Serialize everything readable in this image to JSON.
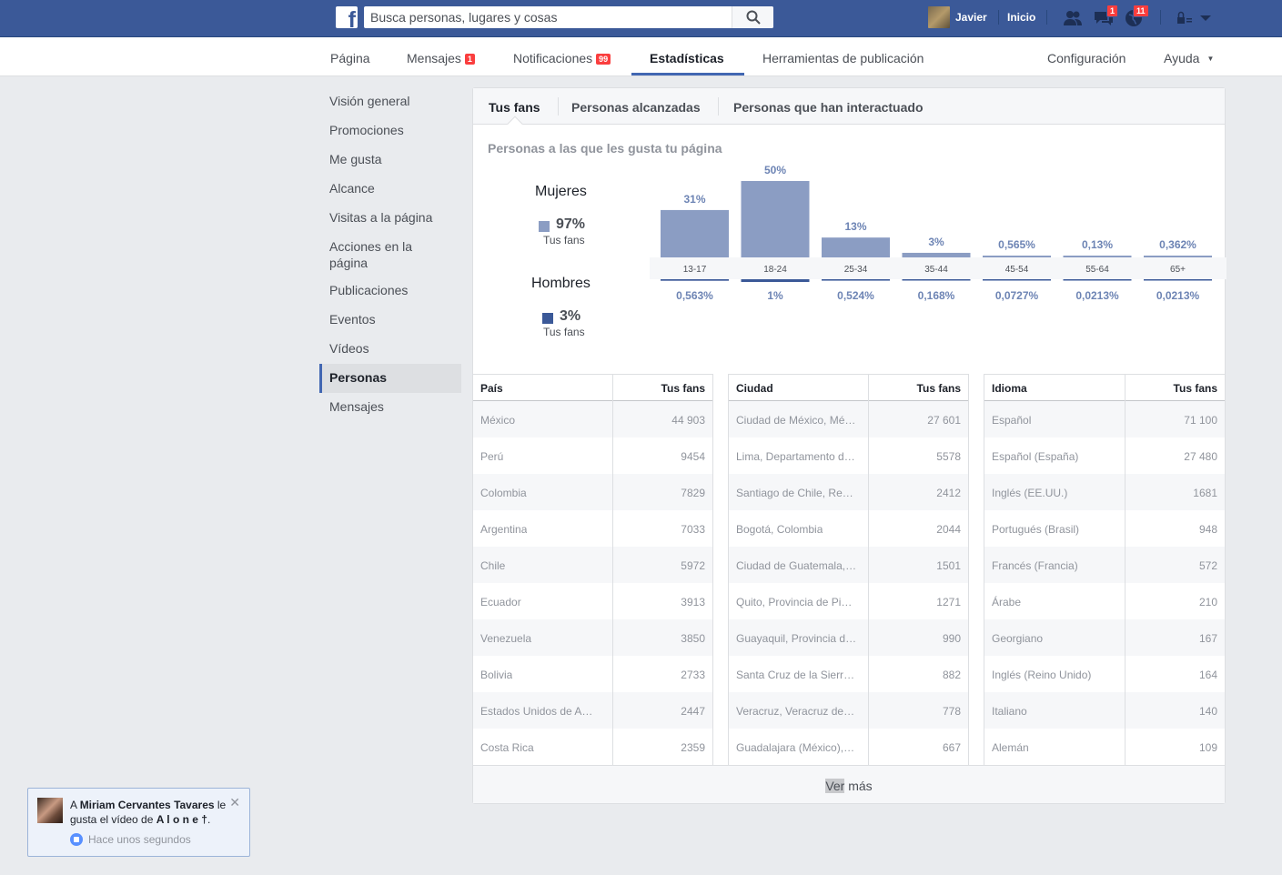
{
  "topbar": {
    "search_placeholder": "Busca personas, lugares y cosas",
    "user_name": "Javier",
    "home_label": "Inicio",
    "friend_requests_badge": "",
    "messages_badge": "1",
    "notifications_badge": "11"
  },
  "pagebar": {
    "tabs": [
      {
        "label": "Página"
      },
      {
        "label": "Mensajes",
        "badge": "1"
      },
      {
        "label": "Notificaciones",
        "badge": "99"
      },
      {
        "label": "Estadísticas"
      },
      {
        "label": "Herramientas de publicación"
      }
    ],
    "config_label": "Configuración",
    "help_label": "Ayuda"
  },
  "leftmenu": {
    "items": [
      "Visión general",
      "Promociones",
      "Me gusta",
      "Alcance",
      "Visitas a la página",
      "Acciones en la página",
      "Publicaciones",
      "Eventos",
      "Vídeos",
      "Personas",
      "Mensajes"
    ],
    "active": "Personas"
  },
  "subtabs": [
    "Tus fans",
    "Personas alcanzadas",
    "Personas que han interactuado"
  ],
  "chart_section": {
    "title": "Personas a las que les gusta tu página",
    "women": {
      "label": "Mujeres",
      "pct": "97%",
      "sub": "Tus fans"
    },
    "men": {
      "label": "Hombres",
      "pct": "3%",
      "sub": "Tus fans"
    }
  },
  "chart_data": {
    "type": "bar",
    "categories": [
      "13-17",
      "18-24",
      "25-34",
      "35-44",
      "45-54",
      "55-64",
      "65+"
    ],
    "series": [
      {
        "name": "Mujeres",
        "values": [
          31,
          50,
          13,
          3,
          0.565,
          0.13,
          0.362
        ],
        "labels": [
          "31%",
          "50%",
          "13%",
          "3%",
          "0,565%",
          "0,13%",
          "0,362%"
        ],
        "color": "#8b9dc3"
      },
      {
        "name": "Hombres",
        "values": [
          0.563,
          1,
          0.524,
          0.168,
          0.0727,
          0.0213,
          0.0213
        ],
        "labels": [
          "0,563%",
          "1%",
          "0,524%",
          "0,168%",
          "0,0727%",
          "0,0213%",
          "0,0213%"
        ],
        "color": "#3b5998"
      }
    ]
  },
  "tables": [
    {
      "header": [
        "País",
        "Tus fans"
      ],
      "rows": [
        [
          "México",
          "44 903"
        ],
        [
          "Perú",
          "9454"
        ],
        [
          "Colombia",
          "7829"
        ],
        [
          "Argentina",
          "7033"
        ],
        [
          "Chile",
          "5972"
        ],
        [
          "Ecuador",
          "3913"
        ],
        [
          "Venezuela",
          "3850"
        ],
        [
          "Bolivia",
          "2733"
        ],
        [
          "Estados Unidos de América",
          "2447"
        ],
        [
          "Costa Rica",
          "2359"
        ]
      ]
    },
    {
      "header": [
        "Ciudad",
        "Tus fans"
      ],
      "rows": [
        [
          "Ciudad de México, México",
          "27 601"
        ],
        [
          "Lima, Departamento de Lima",
          "5578"
        ],
        [
          "Santiago de Chile, Región Metropolitana",
          "2412"
        ],
        [
          "Bogotá, Colombia",
          "2044"
        ],
        [
          "Ciudad de Guatemala, Guatemala",
          "1501"
        ],
        [
          "Quito, Provincia de Pichincha",
          "1271"
        ],
        [
          "Guayaquil, Provincia del Guayas",
          "990"
        ],
        [
          "Santa Cruz de la Sierra, Bolivia",
          "882"
        ],
        [
          "Veracruz, Veracruz de Ignacio",
          "778"
        ],
        [
          "Guadalajara (México), Jalisco",
          "667"
        ]
      ]
    },
    {
      "header": [
        "Idioma",
        "Tus fans"
      ],
      "rows": [
        [
          "Español",
          "71 100"
        ],
        [
          "Español (España)",
          "27 480"
        ],
        [
          "Inglés (EE.UU.)",
          "1681"
        ],
        [
          "Portugués (Brasil)",
          "948"
        ],
        [
          "Francés (Francia)",
          "572"
        ],
        [
          "Árabe",
          "210"
        ],
        [
          "Georgiano",
          "167"
        ],
        [
          "Inglés (Reino Unido)",
          "164"
        ],
        [
          "Italiano",
          "140"
        ],
        [
          "Alemán",
          "109"
        ]
      ]
    }
  ],
  "ver_mas": {
    "part1": "Ver",
    "part2": " más"
  },
  "toast": {
    "prefix": "A ",
    "name": "Miriam Cervantes Tavares",
    "text": " le gusta el vídeo de ",
    "video": "A l o n e †",
    "suffix": ".",
    "time": "Hace unos segundos"
  }
}
